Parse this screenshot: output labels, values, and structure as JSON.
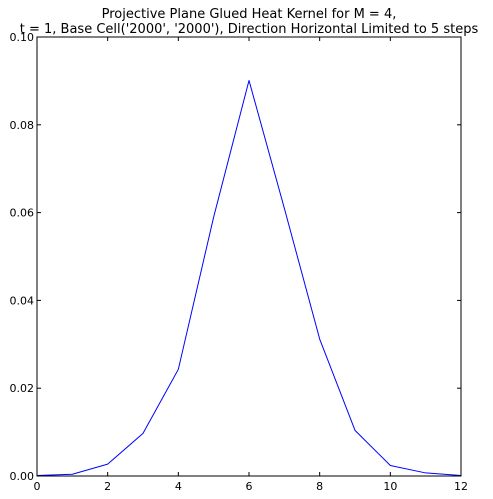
{
  "chart_data": {
    "type": "line",
    "title_line1": "Projective Plane Glued Heat Kernel for M = 4,",
    "title_line2": "t = 1, Base Cell('2000', '2000'), Direction Horizontal Limited to 5 steps",
    "xlabel": "",
    "ylabel": "",
    "xlim": [
      0,
      12
    ],
    "ylim": [
      0,
      0.1
    ],
    "x_ticks": [
      0,
      2,
      4,
      6,
      8,
      10,
      12
    ],
    "x_tick_labels": [
      "0",
      "2",
      "4",
      "6",
      "8",
      "10",
      "12"
    ],
    "y_ticks": [
      0,
      0.02,
      0.04,
      0.06,
      0.08,
      0.1
    ],
    "y_tick_labels": [
      "0.00",
      "0.02",
      "0.04",
      "0.06",
      "0.08",
      "0.10"
    ],
    "grid": false,
    "line_color": "#0000ff",
    "series": [
      {
        "x": [
          0,
          1,
          2,
          3,
          4,
          5,
          6,
          7,
          8,
          9,
          10,
          11,
          12
        ],
        "values": [
          0.0001,
          0.0004,
          0.0027,
          0.0097,
          0.0243,
          0.059,
          0.0901,
          0.061,
          0.0312,
          0.0104,
          0.0024,
          0.0007,
          0.0001
        ]
      }
    ]
  }
}
